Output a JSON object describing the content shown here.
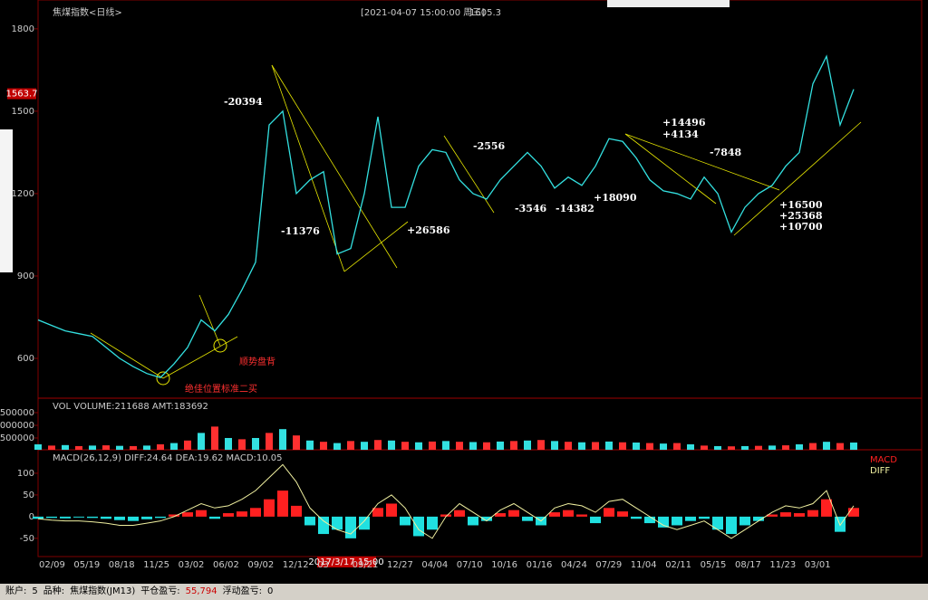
{
  "header": {
    "title": "焦煤指数<日线>",
    "time": "[2021-04-07  15:00:00 周三]",
    "price": "1605.3"
  },
  "last_price": 1563.7,
  "cursor_date": "2017/3/17 15:00",
  "date_axis": {
    "labels": [
      "02/09",
      "05/19",
      "08/18",
      "11/25",
      "03/02",
      "06/02",
      "09/02",
      "12/12",
      "03",
      "09/21",
      "12/27",
      "04/04",
      "07/10",
      "10/16",
      "01/16",
      "04/24",
      "07/29",
      "11/04",
      "02/11",
      "05/15",
      "08/17",
      "11/23",
      "03/01"
    ]
  },
  "annotations": [
    "-20394",
    "-11376",
    "+26586",
    "-2556",
    "-3546",
    "-14382",
    "+18090",
    "+14496",
    "+4134",
    "-7848",
    "+16500",
    "+25368",
    "+10700",
    "顺势盘背",
    "绝佳位置标准二买"
  ],
  "chart_data": [
    {
      "type": "line",
      "color": "#33e0e0",
      "values": [
        740,
        720,
        700,
        690,
        680,
        640,
        600,
        570,
        545,
        530,
        580,
        640,
        740,
        700,
        760,
        850,
        950,
        1450,
        1500,
        1200,
        1250,
        1280,
        980,
        1000,
        1200,
        1480,
        1150,
        1150,
        1300,
        1360,
        1350,
        1250,
        1200,
        1180,
        1250,
        1300,
        1350,
        1300,
        1220,
        1260,
        1230,
        1300,
        1400,
        1390,
        1330,
        1250,
        1210,
        1200,
        1180,
        1260,
        1200,
        1060,
        1150,
        1200,
        1230,
        1300,
        1350,
        1600,
        1700,
        1450,
        1580
      ],
      "ylim": [
        455,
        1905
      ],
      "yticks": [
        600,
        900,
        1200,
        1500,
        1800
      ]
    },
    {
      "type": "bar",
      "title": "VOL  VOLUME:211688 AMT:183692",
      "color": "#33e0e0",
      "values": [
        250000,
        200000,
        220000,
        180000,
        200000,
        210000,
        190000,
        180000,
        200000,
        250000,
        300000,
        400000,
        700000,
        950000,
        500000,
        450000,
        500000,
        700000,
        850000,
        600000,
        400000,
        350000,
        300000,
        380000,
        350000,
        420000,
        400000,
        350000,
        330000,
        360000,
        380000,
        350000,
        340000,
        330000,
        360000,
        380000,
        400000,
        420000,
        380000,
        350000,
        330000,
        340000,
        360000,
        330000,
        320000,
        300000,
        280000,
        300000,
        250000,
        200000,
        180000,
        170000,
        180000,
        190000,
        200000,
        210000,
        250000,
        300000,
        350000,
        300000,
        320000
      ],
      "ylim": [
        35000,
        2035000
      ],
      "yticks": [
        500000,
        1000000,
        1500000
      ]
    },
    {
      "type": "macd",
      "title": "MACD(26,12,9)  DIFF:24.64  DEA:19.62  MACD:10.05",
      "series": [
        {
          "name": "MACD",
          "color": "#ff2020",
          "values": [
            -5,
            -3,
            -4,
            -2,
            -3,
            -5,
            -8,
            -10,
            -6,
            -3,
            5,
            10,
            15,
            -5,
            8,
            12,
            20,
            40,
            60,
            25,
            -20,
            -40,
            -30,
            -50,
            -30,
            20,
            30,
            -20,
            -45,
            -30,
            5,
            15,
            -20,
            -10,
            8,
            15,
            -10,
            -20,
            10,
            15,
            5,
            -15,
            20,
            12,
            -5,
            -15,
            -25,
            -20,
            -10,
            -5,
            -30,
            -40,
            -20,
            -10,
            5,
            10,
            8,
            15,
            40,
            -35,
            20
          ]
        },
        {
          "name": "DIFF",
          "color": "#f0f0a0",
          "values": [
            -5,
            -8,
            -10,
            -10,
            -12,
            -15,
            -20,
            -20,
            -15,
            -10,
            0,
            15,
            30,
            20,
            25,
            40,
            60,
            90,
            120,
            80,
            20,
            -10,
            -30,
            -40,
            -10,
            30,
            50,
            20,
            -30,
            -50,
            0,
            30,
            10,
            -10,
            15,
            30,
            10,
            -10,
            20,
            30,
            25,
            10,
            35,
            40,
            20,
            0,
            -20,
            -30,
            -20,
            -10,
            -30,
            -50,
            -30,
            -10,
            10,
            25,
            20,
            30,
            60,
            -20,
            25
          ]
        }
      ],
      "ylim": [
        -92,
        152
      ],
      "yticks": [
        -50,
        0,
        50,
        100
      ]
    }
  ],
  "status_bar": [
    {
      "label": "账户:",
      "value": "5"
    },
    {
      "label": "品种:",
      "value": "焦煤指数(JM13)"
    },
    {
      "label": "平仓盈亏:",
      "value": "55,794"
    },
    {
      "label": "浮动盈亏:",
      "value": "0"
    }
  ]
}
